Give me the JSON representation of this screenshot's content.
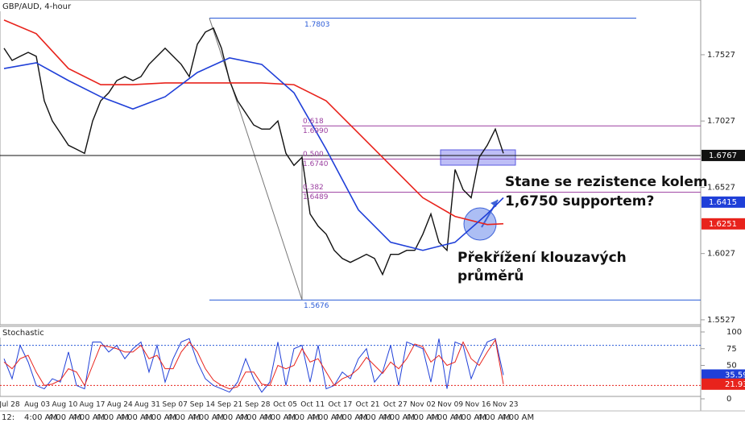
{
  "chart_data": {
    "type": "line",
    "title": "GBP/AUD, 4-hour",
    "ylim": [
      1.549,
      1.794
    ],
    "yticks": [
      1.7527,
      1.7027,
      1.6527,
      1.6027,
      1.5527
    ],
    "x_labels": [
      "Jul 28",
      "Aug 03",
      "Aug 10",
      "Aug 17",
      "Aug 24",
      "Aug 31",
      "Sep 07",
      "Sep 14",
      "Sep 21",
      "Sep 28",
      "Oct 05",
      "Oct 11",
      "Oct 17",
      "Oct 21",
      "Oct 27",
      "Nov 02",
      "Nov 09",
      "Nov 16",
      "Nov 23"
    ],
    "time_row": [
      "12:",
      "4:00 AM",
      "4:00 AM",
      "4:00 AM",
      "4:00 AM",
      "4:00 AM",
      "4:00 AM",
      "4:00 AM",
      "4:00 AM",
      "4:00 AM",
      "4:00 AM",
      "4:00 AM",
      "4:00 AM",
      "4:00 AM",
      "4:00 AM",
      "4:00 AM",
      "4:00 AM",
      "4:00 AM",
      "4:00 AM",
      "4:00 AM",
      "4:00 AM",
      "4:00 AM"
    ],
    "xlim": [
      -0.5,
      86.5
    ],
    "series": [
      {
        "name": "GBP/AUD",
        "color": "#111111",
        "width": 1.4,
        "x": [
          0,
          1,
          2,
          3,
          4,
          5,
          6,
          7,
          8,
          9,
          10,
          11,
          12,
          13,
          14,
          15,
          16,
          17,
          18,
          19,
          20,
          21,
          22,
          23,
          24,
          25,
          26,
          27,
          28,
          29,
          30,
          31,
          32,
          33,
          34,
          35,
          36,
          37,
          38,
          39,
          40,
          41,
          42,
          43,
          44,
          45,
          46,
          47,
          48,
          49,
          50,
          51,
          52,
          53,
          54,
          55,
          56,
          57,
          58,
          59,
          60,
          61,
          62
        ],
        "values": [
          1.7576,
          1.7484,
          1.7515,
          1.7545,
          1.7515,
          1.7179,
          1.7027,
          1.6936,
          1.6844,
          1.6814,
          1.6783,
          1.7027,
          1.7179,
          1.724,
          1.7332,
          1.7362,
          1.7332,
          1.7362,
          1.7454,
          1.7515,
          1.7576,
          1.7515,
          1.7454,
          1.7362,
          1.7606,
          1.7698,
          1.7728,
          1.7576,
          1.7332,
          1.7179,
          1.7088,
          1.6997,
          1.6966,
          1.6966,
          1.7027,
          1.6783,
          1.6692,
          1.6753,
          1.6326,
          1.6234,
          1.6173,
          1.6051,
          1.599,
          1.596,
          1.599,
          1.6021,
          1.599,
          1.5869,
          1.6021,
          1.6021,
          1.6051,
          1.6051,
          1.6173,
          1.6326,
          1.6112,
          1.6051,
          1.6661,
          1.6509,
          1.6448,
          1.6753,
          1.6844,
          1.6966,
          1.6783
        ]
      },
      {
        "name": "MA red",
        "color": "#e8231c",
        "width": 1.6,
        "x": [
          0,
          4,
          8,
          12,
          16,
          20,
          24,
          28,
          32,
          36,
          40,
          44,
          48,
          52,
          56,
          60,
          62
        ],
        "values": [
          1.7789,
          1.7686,
          1.7423,
          1.7301,
          1.7301,
          1.7314,
          1.7314,
          1.7314,
          1.7314,
          1.7301,
          1.7179,
          1.6936,
          1.6692,
          1.6448,
          1.6307,
          1.6246,
          1.6252
        ]
      },
      {
        "name": "MA blue",
        "color": "#1f3fd8",
        "width": 1.6,
        "x": [
          0,
          4,
          8,
          12,
          16,
          20,
          24,
          28,
          32,
          36,
          40,
          44,
          48,
          52,
          56,
          60,
          62
        ],
        "values": [
          1.7423,
          1.7466,
          1.7332,
          1.721,
          1.7118,
          1.721,
          1.7393,
          1.7503,
          1.7454,
          1.724,
          1.6814,
          1.6356,
          1.6112,
          1.6051,
          1.6112,
          1.6326,
          1.6448
        ]
      }
    ],
    "swing_high": 1.7803,
    "swing_low": 1.5676,
    "fib_levels": [
      {
        "ratio": 0.618,
        "value": {
          "value": 1.699,
          "label": "1.6990"
        }
      },
      {
        "ratio": {
          "value": 0.5,
          "label": "0.500"
        },
        "value": {
          "value": 1.674,
          "label": "1.6740"
        }
      },
      {
        "ratio": 0.382,
        "value": 1.6489
      }
    ],
    "current_price": 1.6767,
    "price_tags": [
      {
        "value": 1.6415,
        "color": "#1f3fd8"
      },
      {
        "value": 1.6251,
        "color": "#e8231c"
      }
    ],
    "annotations": [
      "Stane se rezistence kolem",
      "1,6750 supportem?",
      "Překřížení klouzavých",
      "průměrů"
    ],
    "stochastic": {
      "title": "Stochastic",
      "ylim": [
        0,
        100
      ],
      "yticks": [
        100,
        75,
        50,
        0
      ],
      "levels": [
        80,
        20
      ],
      "series": [
        {
          "name": "%K",
          "color": "#1f3fd8",
          "values": [
            60,
            30,
            80,
            55,
            20,
            15,
            30,
            25,
            70,
            20,
            15,
            85,
            85,
            70,
            80,
            60,
            75,
            85,
            40,
            80,
            25,
            60,
            85,
            90,
            55,
            30,
            20,
            15,
            10,
            25,
            60,
            30,
            10,
            25,
            85,
            20,
            75,
            80,
            25,
            80,
            15,
            20,
            40,
            30,
            60,
            75,
            25,
            40,
            80,
            20,
            85,
            80,
            75,
            25,
            90,
            15,
            85,
            80,
            30,
            60,
            85,
            90,
            35.59
          ]
        },
        {
          "name": "%D",
          "color": "#e8231c",
          "values": [
            55,
            45,
            60,
            65,
            40,
            20,
            22,
            28,
            45,
            40,
            20,
            50,
            80,
            78,
            75,
            70,
            70,
            80,
            60,
            65,
            45,
            45,
            70,
            85,
            70,
            45,
            28,
            20,
            15,
            18,
            40,
            40,
            22,
            20,
            50,
            45,
            50,
            75,
            55,
            60,
            40,
            20,
            30,
            35,
            45,
            62,
            50,
            38,
            55,
            45,
            60,
            82,
            78,
            55,
            65,
            50,
            55,
            85,
            60,
            50,
            70,
            88,
            21.93
          ]
        }
      ]
    }
  }
}
